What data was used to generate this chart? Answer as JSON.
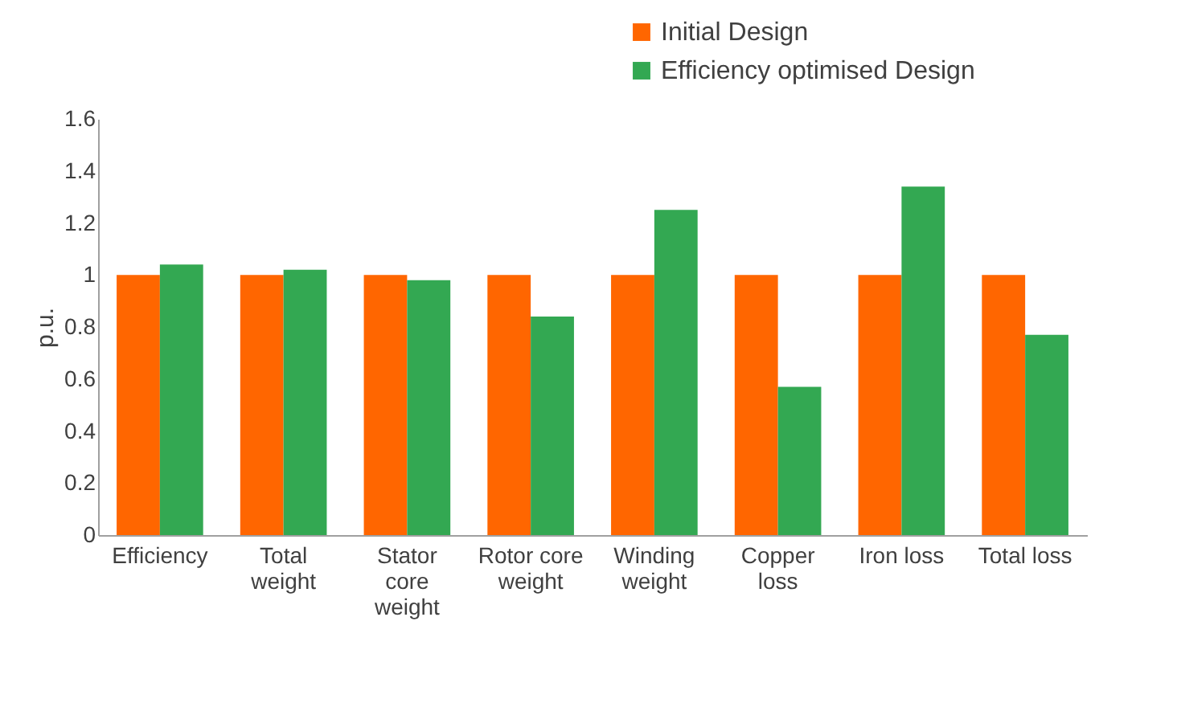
{
  "chart_data": {
    "type": "bar",
    "ylabel": "p.u.",
    "categories": [
      "Efficiency",
      "Total weight",
      "Stator core weight",
      "Rotor core weight",
      "Winding weight",
      "Copper loss",
      "Iron loss",
      "Total loss"
    ],
    "series": [
      {
        "name": "Initial Design",
        "color": "#ff6600",
        "values": [
          1,
          1,
          1,
          1,
          1,
          1,
          1,
          1
        ]
      },
      {
        "name": "Efficiency optimised Design",
        "color": "#33a852",
        "values": [
          1.04,
          1.02,
          0.98,
          0.84,
          1.25,
          0.57,
          1.34,
          0.77
        ]
      }
    ],
    "ylim": [
      0,
      1.6
    ],
    "yticks": [
      0,
      0.2,
      0.4,
      0.6,
      0.8,
      1,
      1.2,
      1.4,
      1.6
    ],
    "grid": false,
    "legend": "top"
  }
}
